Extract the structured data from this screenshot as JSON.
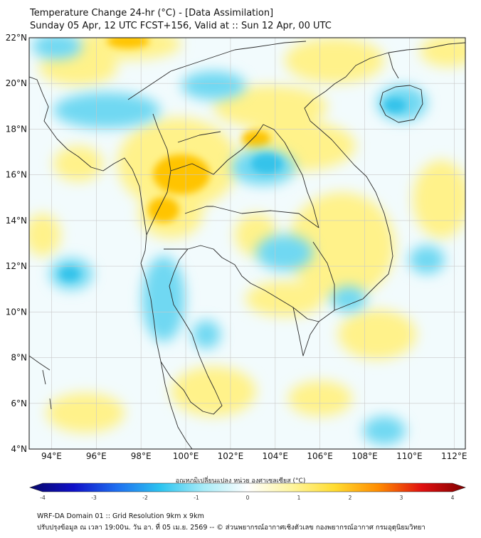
{
  "header": {
    "line1": "Temperature Change 24-hr (°C) - [Data Assimilation]",
    "line2": "Sunday 05 Apr, 12 UTC FCST+156, Valid at :: Sun 12 Apr, 00 UTC"
  },
  "map": {
    "lat_labels": [
      "22°N",
      "20°N",
      "18°N",
      "16°N",
      "14°N",
      "12°N",
      "10°N",
      "8°N",
      "6°N",
      "4°N"
    ],
    "lon_labels": [
      "94°E",
      "96°E",
      "98°E",
      "100°E",
      "102°E",
      "104°E",
      "106°E",
      "108°E",
      "110°E",
      "112°E"
    ],
    "lat_range": [
      4,
      22
    ],
    "lon_range": [
      93,
      112.5
    ],
    "colors": {
      "background": "#f2fbfd",
      "warm_yellow": "#fff28a",
      "warm_orange": "#ffc400",
      "cool_cyan": "#6fd8f2",
      "cool_blue": "#35c3ea",
      "coastline": "#2a2a2a",
      "grid": "#c8c8c8"
    }
  },
  "colorbar": {
    "label": "อุณหภูมิเปลี่ยนแปลง หน่วย องศาเซลเซียส (°C)",
    "ticks": [
      "-4",
      "-3",
      "-2",
      "-1",
      "0",
      "1",
      "2",
      "3",
      "4"
    ],
    "min": -4,
    "max": 4,
    "stops": [
      "#08086a",
      "#1010c8",
      "#1e6ff0",
      "#2cc4f0",
      "#a8ecf8",
      "#ffffff",
      "#fff6a0",
      "#ffdc30",
      "#ff8c00",
      "#e01010",
      "#800000"
    ]
  },
  "footer": {
    "line1": "WRF-DA Domain 01 :: Grid Resolution 9km x 9km",
    "line2": "ปรับปรุงข้อมูล ณ เวลา 19:00น. วัน อา. ที่ 05 เม.ย. 2569 -- © ส่วนพยากรณ์อากาศเชิงตัวเลข กองพยากรณ์อากาศ กรมอุตุนิยมวิทยา"
  }
}
